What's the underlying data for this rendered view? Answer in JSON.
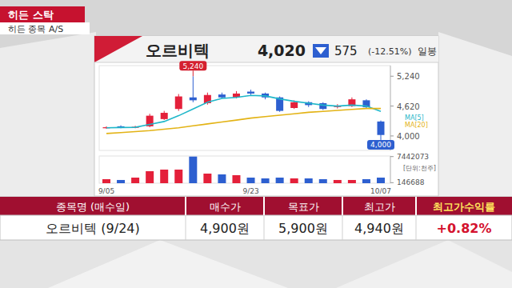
{
  "banner": {
    "title": "히든 스탁",
    "subtitle": "히든 종목 A/S"
  },
  "quote": {
    "price": "4,020",
    "change": "575",
    "change_pct": "(-12.51%)",
    "period": "일봉"
  },
  "chart_data": {
    "type": "candlestick",
    "title": "오르비텍",
    "categories": [
      "9/05",
      null,
      null,
      null,
      null,
      null,
      null,
      null,
      null,
      null,
      "9/23",
      null,
      null,
      null,
      null,
      null,
      null,
      null,
      null,
      "10/07"
    ],
    "ylim": [
      3700,
      5460
    ],
    "yticks": [
      {
        "value": 4000,
        "label": "4,000"
      },
      {
        "value": 4620,
        "label": "4,620"
      },
      {
        "value": 5240,
        "label": "5,240"
      }
    ],
    "y2lim": [
      0,
      7600000
    ],
    "y2ticks": [
      146688,
      7442073
    ],
    "y2_label": "[단위:천주]",
    "grid": false,
    "legend": "right",
    "series": [
      {
        "type": "candlestick",
        "open": [
          4160,
          4200,
          4170,
          4200,
          4350,
          4560,
          4800,
          4680,
          4860,
          4800,
          4920,
          4880,
          4800,
          4580,
          4700,
          4680,
          4600,
          4620,
          4740,
          4300
        ],
        "high": [
          4200,
          4220,
          4210,
          4460,
          4520,
          4870,
          5240,
          4900,
          4900,
          4930,
          4960,
          4900,
          4820,
          4740,
          4720,
          4700,
          4660,
          4800,
          4760,
          4320
        ],
        "low": [
          4150,
          4160,
          4160,
          4180,
          4330,
          4520,
          4700,
          4650,
          4780,
          4780,
          4850,
          4760,
          4500,
          4560,
          4600,
          4540,
          4570,
          4600,
          4580,
          4000
        ],
        "close": [
          4180,
          4170,
          4190,
          4420,
          4480,
          4820,
          4740,
          4850,
          4800,
          4880,
          4880,
          4800,
          4520,
          4700,
          4640,
          4560,
          4620,
          4760,
          4595,
          4020
        ]
      },
      {
        "name": "MA[5]",
        "type": "line",
        "color": "#1fb7c9",
        "values": [
          4170,
          4175,
          4180,
          4240,
          4300,
          4420,
          4560,
          4700,
          4780,
          4800,
          4840,
          4830,
          4770,
          4720,
          4680,
          4640,
          4620,
          4640,
          4620,
          4510
        ]
      },
      {
        "name": "MA[20]",
        "type": "line",
        "color": "#e3b315",
        "values": [
          4050,
          4070,
          4090,
          4110,
          4140,
          4170,
          4210,
          4250,
          4290,
          4330,
          4370,
          4400,
          4430,
          4460,
          4490,
          4510,
          4530,
          4550,
          4570,
          4570
        ]
      },
      {
        "type": "bar",
        "axis": "y2",
        "values": [
          1120000,
          900000,
          1560000,
          3350000,
          3800000,
          3800000,
          7442073,
          2680000,
          2460000,
          2240000,
          1560000,
          1340000,
          1560000,
          1340000,
          1340000,
          1120000,
          900000,
          900000,
          1120000,
          1560000
        ]
      }
    ],
    "annotations": [
      {
        "text": "5,240",
        "value": 5240,
        "index": 6
      },
      {
        "text": "4,000",
        "value": 4000,
        "index": 19
      }
    ]
  },
  "table": {
    "columns": [
      "종목명 (매수일)",
      "매수가",
      "목표가",
      "최고가",
      "최고가수익률"
    ],
    "rows": [
      [
        "오르비텍 (9/24)",
        "4,900원",
        "5,900원",
        "4,940원",
        "+0.82%"
      ]
    ]
  }
}
